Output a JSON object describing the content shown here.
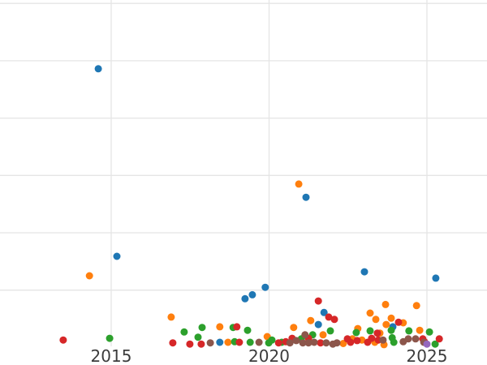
{
  "figure": {
    "background_color": "#ffffff",
    "grid_color": "#e5e5e5",
    "tick_label_color": "#3c3c3c"
  },
  "chart_data": {
    "type": "scatter",
    "title": "",
    "xlabel": "",
    "ylabel": "",
    "grid": true,
    "legend": "none",
    "x_axis": {
      "ticks": [
        2015,
        2020,
        2025
      ],
      "tick_labels": [
        "2015",
        "2020",
        "2025"
      ],
      "range": [
        2011.5,
        2026.9
      ]
    },
    "y_axis": {
      "tick_labels_visible": false,
      "gridline_values": [
        1,
        2,
        3,
        4,
        5,
        6
      ],
      "range": [
        0,
        6.06
      ]
    },
    "series": [
      {
        "name": "blue",
        "color": "#1f77b4",
        "points": [
          [
            2014.59,
            4.86
          ],
          [
            2015.18,
            1.59
          ],
          [
            2018.44,
            0.09
          ],
          [
            2019.24,
            0.85
          ],
          [
            2019.47,
            0.92
          ],
          [
            2019.88,
            1.05
          ],
          [
            2021.17,
            2.62
          ],
          [
            2021.56,
            0.4
          ],
          [
            2021.74,
            0.61
          ],
          [
            2023.02,
            1.32
          ],
          [
            2023.92,
            0.36
          ],
          [
            2025.28,
            1.21
          ]
        ]
      },
      {
        "name": "orange",
        "color": "#ff7f0e",
        "points": [
          [
            2014.31,
            1.25
          ],
          [
            2016.9,
            0.53
          ],
          [
            2018.44,
            0.36
          ],
          [
            2018.7,
            0.09
          ],
          [
            2019.94,
            0.19
          ],
          [
            2020.78,
            0.35
          ],
          [
            2020.94,
            2.85
          ],
          [
            2021.32,
            0.47
          ],
          [
            2021.71,
            0.22
          ],
          [
            2022.35,
            0.07
          ],
          [
            2022.64,
            0.15
          ],
          [
            2022.81,
            0.33
          ],
          [
            2022.94,
            0.13
          ],
          [
            2023.2,
            0.6
          ],
          [
            2023.35,
            0.09
          ],
          [
            2023.38,
            0.49
          ],
          [
            2023.51,
            0.25
          ],
          [
            2023.64,
            0.05
          ],
          [
            2023.69,
            0.75
          ],
          [
            2023.71,
            0.4
          ],
          [
            2023.87,
            0.51
          ],
          [
            2024.25,
            0.43
          ],
          [
            2024.67,
            0.73
          ],
          [
            2024.77,
            0.3
          ]
        ]
      },
      {
        "name": "green",
        "color": "#2ca02c",
        "points": [
          [
            2014.95,
            0.16
          ],
          [
            2017.31,
            0.27
          ],
          [
            2017.75,
            0.18
          ],
          [
            2017.88,
            0.35
          ],
          [
            2018.86,
            0.35
          ],
          [
            2018.91,
            0.1
          ],
          [
            2019.32,
            0.3
          ],
          [
            2019.4,
            0.09
          ],
          [
            2019.99,
            0.08
          ],
          [
            2020.09,
            0.13
          ],
          [
            2020.4,
            0.09
          ],
          [
            2021.02,
            0.15
          ],
          [
            2021.38,
            0.22
          ],
          [
            2021.94,
            0.29
          ],
          [
            2022.76,
            0.26
          ],
          [
            2023.2,
            0.29
          ],
          [
            2023.87,
            0.3
          ],
          [
            2023.9,
            0.17
          ],
          [
            2023.95,
            0.09
          ],
          [
            2024.43,
            0.29
          ],
          [
            2025.08,
            0.27
          ],
          [
            2025.26,
            0.06
          ]
        ]
      },
      {
        "name": "red",
        "color": "#d62728",
        "points": [
          [
            2013.48,
            0.13
          ],
          [
            2016.95,
            0.08
          ],
          [
            2017.49,
            0.06
          ],
          [
            2017.85,
            0.06
          ],
          [
            2018.98,
            0.36
          ],
          [
            2019.06,
            0.09
          ],
          [
            2020.3,
            0.08
          ],
          [
            2020.53,
            0.1
          ],
          [
            2020.73,
            0.16
          ],
          [
            2021.25,
            0.16
          ],
          [
            2021.56,
            0.81
          ],
          [
            2021.63,
            0.08
          ],
          [
            2021.89,
            0.53
          ],
          [
            2022.07,
            0.49
          ],
          [
            2022.48,
            0.15
          ],
          [
            2022.58,
            0.09
          ],
          [
            2022.79,
            0.12
          ],
          [
            2023.12,
            0.09
          ],
          [
            2023.25,
            0.16
          ],
          [
            2023.43,
            0.25
          ],
          [
            2023.46,
            0.13
          ],
          [
            2024.1,
            0.44
          ],
          [
            2024.87,
            0.15
          ],
          [
            2024.92,
            0.1
          ],
          [
            2025.39,
            0.15
          ]
        ]
      },
      {
        "name": "brown",
        "color": "#8c564b",
        "points": [
          [
            2018.14,
            0.08
          ],
          [
            2019.68,
            0.09
          ],
          [
            2020.66,
            0.08
          ],
          [
            2020.86,
            0.12
          ],
          [
            2021.07,
            0.08
          ],
          [
            2021.14,
            0.22
          ],
          [
            2021.25,
            0.08
          ],
          [
            2021.43,
            0.09
          ],
          [
            2021.81,
            0.08
          ],
          [
            2022.02,
            0.06
          ],
          [
            2022.15,
            0.08
          ],
          [
            2023.61,
            0.13
          ],
          [
            2024.25,
            0.1
          ],
          [
            2024.41,
            0.15
          ],
          [
            2024.64,
            0.15
          ],
          [
            2024.9,
            0.09
          ]
        ]
      },
      {
        "name": "purple",
        "color": "#9467bd",
        "points": [
          [
            2025.0,
            0.06
          ]
        ]
      }
    ]
  }
}
